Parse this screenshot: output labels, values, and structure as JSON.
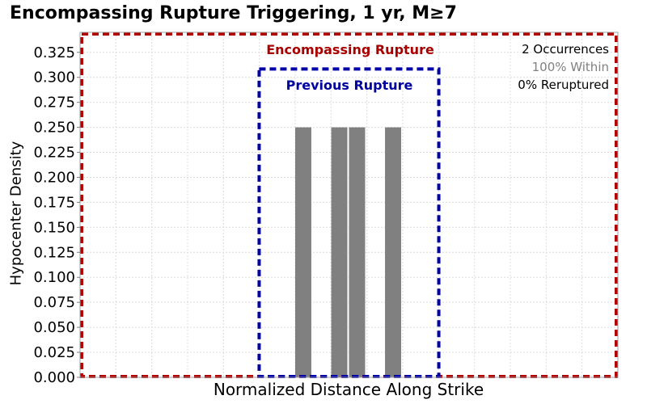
{
  "chart_data": {
    "type": "bar",
    "title": "Encompassing Rupture Triggering, 1 yr, M≥7",
    "xlabel": "Normalized Distance Along Strike",
    "ylabel": "Hypocenter Density",
    "ylim": [
      0,
      0.345
    ],
    "xlim": [
      0,
      1
    ],
    "yticks": [
      "0.000",
      "0.025",
      "0.050",
      "0.075",
      "0.100",
      "0.125",
      "0.150",
      "0.175",
      "0.200",
      "0.225",
      "0.250",
      "0.275",
      "0.300",
      "0.325"
    ],
    "grid": true,
    "bin_width": 0.03,
    "bars": [
      {
        "x_start": 0.4,
        "value": 0.25
      },
      {
        "x_start": 0.467,
        "value": 0.25
      },
      {
        "x_start": 0.5,
        "value": 0.25
      },
      {
        "x_start": 0.567,
        "value": 0.25
      }
    ],
    "regions": [
      {
        "name": "Encompassing Rupture",
        "x_start": 0.0,
        "x_end": 1.0,
        "y_top": 0.345,
        "color": "#b00000"
      },
      {
        "name": "Previous Rupture",
        "x_start": 0.333,
        "x_end": 0.667,
        "y_top": 0.31,
        "color": "#0000a8"
      }
    ],
    "annotations": {
      "occurrences": "2 Occurrences",
      "within": "100% Within",
      "reruptured": "0% Reruptured"
    },
    "bar_color": "#808080"
  }
}
